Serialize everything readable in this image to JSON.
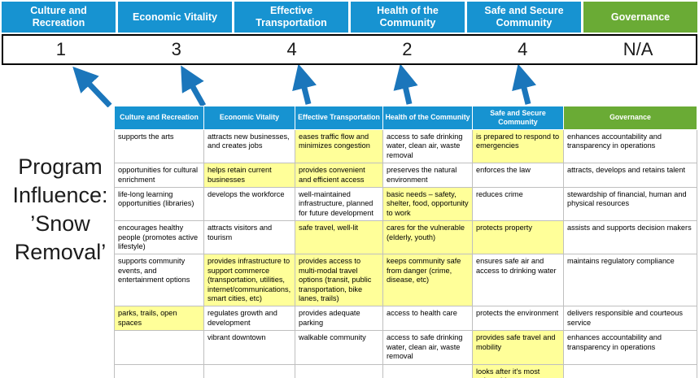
{
  "colors": {
    "header_blue": "#1793d1",
    "governance_green": "#6aab35",
    "highlight_yellow": "#ffff99",
    "arrow_blue": "#1b76bb",
    "score_border": "#000000"
  },
  "program_label": {
    "text": "Program Influence: ’Snow Removal’",
    "lines": [
      "Program",
      "Influence:",
      "’Snow",
      "Removal’"
    ]
  },
  "banner": {
    "columns": [
      {
        "label": "Culture and Recreation",
        "score": "1",
        "color": "#1793d1"
      },
      {
        "label": "Economic Vitality",
        "score": "3",
        "color": "#1793d1"
      },
      {
        "label": "Effective Transportation",
        "score": "4",
        "color": "#1793d1"
      },
      {
        "label": "Health of the Community",
        "score": "2",
        "color": "#1793d1"
      },
      {
        "label": "Safe and Secure Community",
        "score": "4",
        "color": "#1793d1"
      },
      {
        "label": "Governance",
        "score": "N/A",
        "color": "#6aab35"
      }
    ]
  },
  "matrix": {
    "headers": [
      {
        "label": "Culture and Recreation",
        "color": "#1793d1"
      },
      {
        "label": "Economic Vitality",
        "color": "#1793d1"
      },
      {
        "label": "Effective Transportation",
        "color": "#1793d1"
      },
      {
        "label": "Health of the Community",
        "color": "#1793d1"
      },
      {
        "label": "Safe and Secure Community",
        "color": "#1793d1"
      },
      {
        "label": "Governance",
        "color": "#6aab35"
      }
    ],
    "rows": [
      [
        {
          "text": "supports the arts",
          "hl": false
        },
        {
          "text": "attracts new businesses, and creates jobs",
          "hl": false
        },
        {
          "text": "eases traffic flow and minimizes congestion",
          "hl": true
        },
        {
          "text": "access to safe drinking water, clean air, waste removal",
          "hl": false
        },
        {
          "text": "is prepared to respond to emergencies",
          "hl": true
        },
        {
          "text": "enhances accountability and transparency in operations",
          "hl": false
        }
      ],
      [
        {
          "text": "opportunities for cultural enrichment",
          "hl": false
        },
        {
          "text": "helps retain current businesses",
          "hl": true
        },
        {
          "text": "provides convenient and efficient access",
          "hl": true
        },
        {
          "text": "preserves the natural environment",
          "hl": false
        },
        {
          "text": "enforces the law",
          "hl": false
        },
        {
          "text": "attracts, develops and retains talent",
          "hl": false
        }
      ],
      [
        {
          "text": "life-long learning opportunities (libraries)",
          "hl": false
        },
        {
          "text": "develops the workforce",
          "hl": false
        },
        {
          "text": "well-maintained infrastructure, planned for future development",
          "hl": false
        },
        {
          "text": "basic needs – safety, shelter, food, opportunity to work",
          "hl": true
        },
        {
          "text": "reduces crime",
          "hl": false
        },
        {
          "text": "stewardship of financial, human and physical resources",
          "hl": false
        }
      ],
      [
        {
          "text": "encourages healthy people (promotes active lifestyle)",
          "hl": false
        },
        {
          "text": "attracts visitors and tourism",
          "hl": false
        },
        {
          "text": "safe travel, well-lit",
          "hl": true
        },
        {
          "text": "cares for the vulnerable (elderly, youth)",
          "hl": true
        },
        {
          "text": "protects property",
          "hl": true
        },
        {
          "text": "assists and supports decision makers",
          "hl": false
        }
      ],
      [
        {
          "text": "supports community events, and entertainment options",
          "hl": false
        },
        {
          "text": "provides infrastructure to support commerce (transportation, utilities, internet/communications, smart cities, etc)",
          "hl": true
        },
        {
          "text": "provides access to multi-modal travel options (transit, public transportation, bike lanes, trails)",
          "hl": true
        },
        {
          "text": "keeps community safe from danger (crime, disease, etc)",
          "hl": true
        },
        {
          "text": "ensures safe air and access to drinking water",
          "hl": false
        },
        {
          "text": "maintains regulatory compliance",
          "hl": false
        }
      ],
      [
        {
          "text": "parks, trails, open spaces",
          "hl": true
        },
        {
          "text": "regulates growth and development",
          "hl": false
        },
        {
          "text": "provides adequate parking",
          "hl": false
        },
        {
          "text": "access to health care",
          "hl": false
        },
        {
          "text": "protects the environment",
          "hl": false
        },
        {
          "text": "delivers responsible and courteous service",
          "hl": false
        }
      ],
      [
        {
          "text": "",
          "hl": false
        },
        {
          "text": "vibrant downtown",
          "hl": false
        },
        {
          "text": "walkable community",
          "hl": false
        },
        {
          "text": "access to safe drinking water, clean air, waste removal",
          "hl": false
        },
        {
          "text": "provides safe travel and mobility",
          "hl": true
        },
        {
          "text": "enhances accountability and transparency in operations",
          "hl": false
        }
      ],
      [
        {
          "text": "",
          "hl": false
        },
        {
          "text": "",
          "hl": false
        },
        {
          "text": "",
          "hl": false
        },
        {
          "text": "",
          "hl": false
        },
        {
          "text": "looks after it's most vulnerable",
          "hl": true
        },
        {
          "text": "",
          "hl": false
        }
      ]
    ]
  }
}
